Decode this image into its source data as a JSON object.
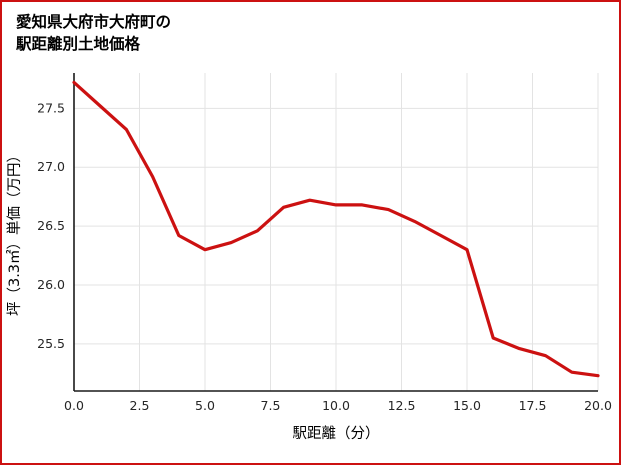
{
  "page": {
    "border_color": "#cc1111",
    "background": "#ffffff"
  },
  "title": {
    "line1": "愛知県大府市大府町の",
    "line2": "駅距離別土地価格"
  },
  "chart_data": {
    "type": "line",
    "title": "愛知県大府市大府町の駅距離別土地価格",
    "xlabel": "駅距離（分）",
    "ylabel": "坪（3.3㎡）単価（万円）",
    "x": [
      0,
      1,
      2,
      3,
      4,
      5,
      6,
      7,
      8,
      9,
      10,
      11,
      12,
      13,
      14,
      15,
      16,
      17,
      18,
      19,
      20
    ],
    "values": [
      27.72,
      27.52,
      27.32,
      26.92,
      26.42,
      26.3,
      26.36,
      26.46,
      26.66,
      26.72,
      26.68,
      26.68,
      26.64,
      26.54,
      26.42,
      26.3,
      25.55,
      25.46,
      25.4,
      25.26,
      25.23
    ],
    "x_ticks": [
      0.0,
      2.5,
      5.0,
      7.5,
      10.0,
      12.5,
      15.0,
      17.5,
      20.0
    ],
    "y_ticks": [
      25.5,
      26.0,
      26.5,
      27.0,
      27.5
    ],
    "xlim": [
      0,
      20
    ],
    "ylim": [
      25.1,
      27.8
    ],
    "grid": true,
    "series_color": "#cc1111",
    "grid_color": "#e3e3e3",
    "axis_color": "#1a1a1a",
    "legend_position": "none"
  }
}
